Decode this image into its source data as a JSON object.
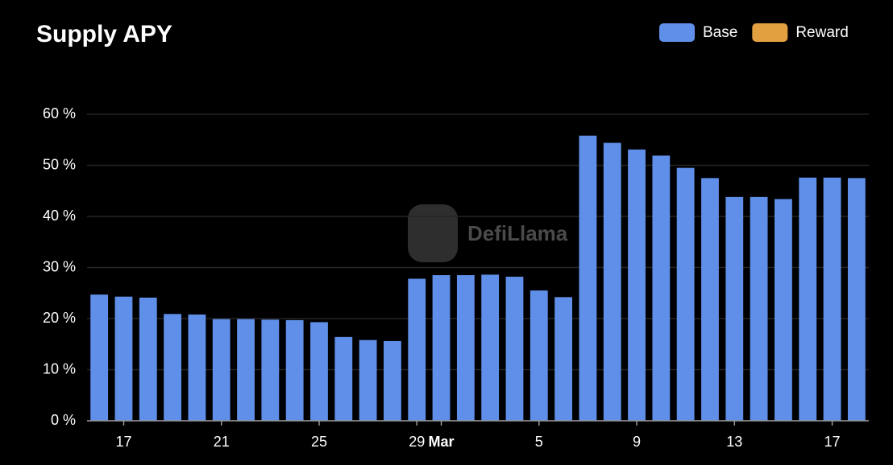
{
  "chart_data": {
    "type": "bar",
    "title": "Supply APY",
    "watermark": "DefiLlama",
    "categories": [
      null,
      "17",
      null,
      null,
      null,
      "21",
      null,
      null,
      null,
      "25",
      null,
      null,
      null,
      "29",
      "Mar",
      null,
      null,
      null,
      "5",
      null,
      null,
      null,
      "9",
      null,
      null,
      null,
      "13",
      null,
      null,
      null,
      "17",
      null
    ],
    "series": [
      {
        "name": "Base",
        "color": "#5f8fe8",
        "values": [
          24.7,
          24.3,
          24.1,
          20.9,
          20.8,
          19.9,
          19.9,
          19.8,
          19.7,
          19.3,
          16.4,
          15.8,
          15.6,
          27.8,
          28.5,
          28.5,
          28.6,
          28.2,
          25.5,
          24.2,
          55.8,
          54.4,
          53.1,
          51.9,
          49.5,
          47.5,
          43.8,
          43.8,
          43.4,
          47.6,
          47.6,
          47.5
        ]
      },
      {
        "name": "Reward",
        "color": "#e3a040",
        "values": [
          0,
          0,
          0,
          0,
          0,
          0,
          0,
          0,
          0,
          0,
          0,
          0,
          0,
          0,
          0,
          0,
          0,
          0,
          0,
          0,
          0,
          0,
          0,
          0,
          0,
          0,
          0,
          0,
          0,
          0,
          0,
          0
        ]
      }
    ],
    "stacked": true,
    "ylim": [
      0,
      60
    ],
    "yticks": [
      {
        "value": 0,
        "label": "0 %"
      },
      {
        "value": 10,
        "label": "10 %"
      },
      {
        "value": 20,
        "label": "20 %"
      },
      {
        "value": 30,
        "label": "30 %"
      },
      {
        "value": 40,
        "label": "40 %"
      },
      {
        "value": 50,
        "label": "50 %"
      },
      {
        "value": 60,
        "label": "60 %"
      }
    ],
    "grid": true,
    "legend": "top-right"
  }
}
